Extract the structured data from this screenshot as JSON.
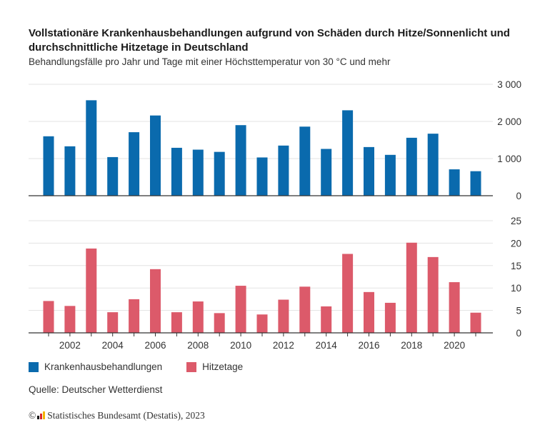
{
  "title": "Vollstationäre Krankenhausbehandlungen aufgrund von Schäden durch Hitze/Sonnenlicht und durchschnittliche Hitzetage in Deutschland",
  "subtitle": "Behandlungsfälle pro Jahr und Tage mit einer Höchsttemperatur von 30 °C und mehr",
  "source": "Quelle: Deutscher Wetterdienst",
  "copyright": "Statistisches Bundesamt (Destatis), 2023",
  "copyright_symbol": "©",
  "colors": {
    "treatments": "#0a6aad",
    "heatdays": "#dc5a6a",
    "grid": "#e3e3e3",
    "axis": "#333333"
  },
  "chart_data": [
    {
      "type": "bar",
      "categories": [
        2001,
        2002,
        2003,
        2004,
        2005,
        2006,
        2007,
        2008,
        2009,
        2010,
        2011,
        2012,
        2013,
        2014,
        2015,
        2016,
        2017,
        2018,
        2019,
        2020,
        2021
      ],
      "series": [
        {
          "name": "Krankenhausbehandlungen",
          "values": [
            1600,
            1330,
            2570,
            1040,
            1710,
            2160,
            1290,
            1240,
            1180,
            1900,
            1030,
            1350,
            1860,
            1260,
            2300,
            1310,
            1100,
            1560,
            1670,
            710,
            660
          ]
        }
      ],
      "ylim": [
        0,
        3000
      ],
      "yticks": [
        0,
        1000,
        2000,
        3000
      ],
      "ytick_labels": [
        "0",
        "1 000",
        "2 000",
        "3 000"
      ],
      "grid": true
    },
    {
      "type": "bar",
      "categories": [
        2001,
        2002,
        2003,
        2004,
        2005,
        2006,
        2007,
        2008,
        2009,
        2010,
        2011,
        2012,
        2013,
        2014,
        2015,
        2016,
        2017,
        2018,
        2019,
        2020,
        2021
      ],
      "series": [
        {
          "name": "Hitzetage",
          "values": [
            7.1,
            6.0,
            18.8,
            4.6,
            7.5,
            14.2,
            4.6,
            7.0,
            4.4,
            10.5,
            4.1,
            7.4,
            10.3,
            5.9,
            17.6,
            9.1,
            6.7,
            20.1,
            16.9,
            11.3,
            4.5
          ]
        }
      ],
      "ylim": [
        0,
        25
      ],
      "yticks": [
        0,
        5,
        10,
        15,
        20,
        25
      ],
      "ytick_labels": [
        "0",
        "5",
        "10",
        "15",
        "20",
        "25"
      ],
      "xtick_labels": [
        "2002",
        "2004",
        "2006",
        "2008",
        "2010",
        "2012",
        "2014",
        "2016",
        "2018",
        "2020"
      ],
      "grid": true
    }
  ],
  "legend": {
    "position": "bottom-left",
    "items": [
      "Krankenhausbehandlungen",
      "Hitzetage"
    ]
  }
}
